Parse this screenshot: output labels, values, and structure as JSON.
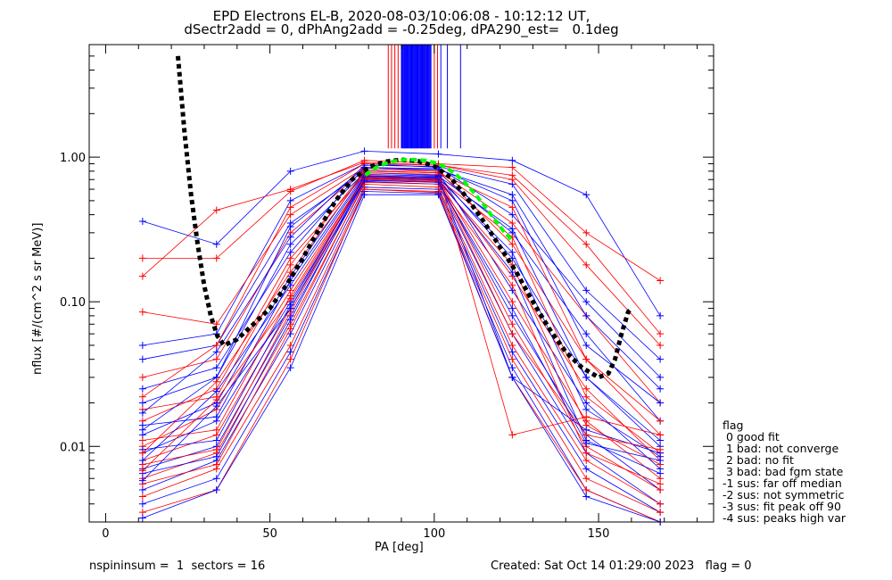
{
  "chart_data": {
    "type": "line",
    "title": "EPD Electrons EL-B, 2020-08-03/10:06:08 - 10:12:12 UT,",
    "subtitle": "dSectr2add = 0, dPhAng2add = -0.25deg, dPA290_est=   0.1deg",
    "xlabel": "PA [deg]",
    "ylabel": "nflux [#/(cm^2 s sr MeV)]",
    "xlim": [
      -5,
      185
    ],
    "ylim": [
      0.003,
      6.0
    ],
    "yscale": "log",
    "x_ticks": [
      0,
      50,
      100,
      150
    ],
    "x_tick_labels": [
      "0",
      "50",
      "100",
      "150"
    ],
    "y_ticks": [
      0.01,
      0.1,
      1.0
    ],
    "y_tick_labels": [
      "0.01",
      "0.10",
      "1.00"
    ],
    "pa_bins": [
      11.25,
      33.75,
      56.25,
      78.75,
      101.25,
      123.75,
      146.25,
      168.75
    ],
    "series": [
      {
        "color": "#0000ff",
        "values": [
          0.36,
          0.25,
          0.8,
          1.1,
          1.05,
          0.95,
          0.55,
          0.08
        ]
      },
      {
        "color": "#ff0000",
        "values": [
          0.2,
          0.2,
          0.58,
          0.95,
          0.9,
          0.85,
          0.3,
          0.14
        ]
      },
      {
        "color": "#ff0000",
        "values": [
          0.15,
          0.43,
          0.6,
          0.92,
          0.88,
          0.75,
          0.25,
          0.06
        ]
      },
      {
        "color": "#0000ff",
        "values": [
          0.05,
          0.06,
          0.5,
          0.9,
          0.85,
          0.4,
          0.1,
          0.03
        ]
      },
      {
        "color": "#ff0000",
        "values": [
          0.085,
          0.07,
          0.4,
          0.85,
          0.8,
          0.35,
          0.08,
          0.02
        ]
      },
      {
        "color": "#0000ff",
        "values": [
          0.04,
          0.05,
          0.35,
          0.8,
          0.78,
          0.3,
          0.06,
          0.015
        ]
      },
      {
        "color": "#ff0000",
        "values": [
          0.03,
          0.04,
          0.3,
          0.82,
          0.8,
          0.25,
          0.04,
          0.012
        ]
      },
      {
        "color": "#0000ff",
        "values": [
          0.02,
          0.03,
          0.25,
          0.78,
          0.75,
          0.2,
          0.03,
          0.01
        ]
      },
      {
        "color": "#ff0000",
        "values": [
          0.015,
          0.025,
          0.2,
          0.75,
          0.72,
          0.15,
          0.025,
          0.008
        ]
      },
      {
        "color": "#0000ff",
        "values": [
          0.012,
          0.02,
          0.15,
          0.8,
          0.78,
          0.12,
          0.02,
          0.007
        ]
      },
      {
        "color": "#ff0000",
        "values": [
          0.01,
          0.018,
          0.12,
          0.72,
          0.7,
          0.1,
          0.015,
          0.006
        ]
      },
      {
        "color": "#0000ff",
        "values": [
          0.009,
          0.015,
          0.1,
          0.7,
          0.68,
          0.08,
          0.012,
          0.005
        ]
      },
      {
        "color": "#ff0000",
        "values": [
          0.008,
          0.012,
          0.09,
          0.75,
          0.7,
          0.07,
          0.01,
          0.005
        ]
      },
      {
        "color": "#0000ff",
        "values": [
          0.007,
          0.01,
          0.08,
          0.68,
          0.65,
          0.06,
          0.009,
          0.004
        ]
      },
      {
        "color": "#ff0000",
        "values": [
          0.006,
          0.009,
          0.07,
          0.65,
          0.62,
          0.05,
          0.008,
          0.004
        ]
      },
      {
        "color": "#0000ff",
        "values": [
          0.005,
          0.008,
          0.06,
          0.62,
          0.6,
          0.045,
          0.007,
          0.0035
        ]
      },
      {
        "color": "#ff0000",
        "values": [
          0.0045,
          0.007,
          0.05,
          0.6,
          0.58,
          0.04,
          0.006,
          0.0035
        ]
      },
      {
        "color": "#0000ff",
        "values": [
          0.004,
          0.006,
          0.045,
          0.58,
          0.56,
          0.035,
          0.005,
          0.003
        ]
      },
      {
        "color": "#ff0000",
        "values": [
          0.0035,
          0.005,
          0.04,
          0.6,
          0.57,
          0.03,
          0.005,
          0.003
        ]
      },
      {
        "color": "#0000ff",
        "values": [
          0.0032,
          0.005,
          0.035,
          0.55,
          0.55,
          0.03,
          0.0045,
          0.003
        ]
      },
      {
        "color": "#0000ff",
        "values": [
          0.025,
          0.035,
          0.22,
          0.85,
          0.83,
          0.5,
          0.05,
          0.02
        ]
      },
      {
        "color": "#ff0000",
        "values": [
          0.018,
          0.022,
          0.18,
          0.8,
          0.78,
          0.45,
          0.04,
          0.015
        ]
      },
      {
        "color": "#0000ff",
        "values": [
          0.014,
          0.016,
          0.14,
          0.76,
          0.74,
          0.32,
          0.03,
          0.011
        ]
      },
      {
        "color": "#ff0000",
        "values": [
          0.011,
          0.013,
          0.11,
          0.73,
          0.71,
          0.28,
          0.022,
          0.009
        ]
      },
      {
        "color": "#0000ff",
        "values": [
          0.0095,
          0.011,
          0.095,
          0.74,
          0.72,
          0.22,
          0.018,
          0.0085
        ]
      },
      {
        "color": "#ff0000",
        "values": [
          0.0075,
          0.0095,
          0.085,
          0.7,
          0.68,
          0.18,
          0.014,
          0.0075
        ]
      },
      {
        "color": "#0000ff",
        "values": [
          0.0065,
          0.0085,
          0.075,
          0.72,
          0.7,
          0.16,
          0.011,
          0.0065
        ]
      },
      {
        "color": "#ff0000",
        "values": [
          0.0055,
          0.0075,
          0.065,
          0.67,
          0.65,
          0.13,
          0.009,
          0.0055
        ]
      },
      {
        "color": "#0000ff",
        "values": [
          0.017,
          0.045,
          0.28,
          0.88,
          0.86,
          0.65,
          0.12,
          0.04
        ]
      },
      {
        "color": "#ff0000",
        "values": [
          0.022,
          0.05,
          0.45,
          0.9,
          0.88,
          0.7,
          0.18,
          0.05
        ]
      },
      {
        "color": "#0000ff",
        "values": [
          0.013,
          0.03,
          0.33,
          0.84,
          0.82,
          0.55,
          0.08,
          0.025
        ]
      },
      {
        "color": "#ff0000",
        "values": [
          0.009,
          0.028,
          0.16,
          0.78,
          0.76,
          0.012,
          0.016,
          0.012
        ]
      },
      {
        "color": "#0000ff",
        "values": [
          0.008,
          0.024,
          0.13,
          0.74,
          0.73,
          0.03,
          0.013,
          0.009
        ]
      },
      {
        "color": "#ff0000",
        "values": [
          0.0068,
          0.021,
          0.105,
          0.71,
          0.69,
          0.06,
          0.012,
          0.0095
        ]
      },
      {
        "color": "#0000ff",
        "values": [
          0.0058,
          0.019,
          0.09,
          0.69,
          0.67,
          0.09,
          0.0105,
          0.008
        ]
      }
    ],
    "spikes": {
      "red_x": [
        86,
        87,
        88,
        89,
        90,
        96,
        97,
        98,
        100,
        101
      ],
      "blue_x": [
        91,
        92,
        93,
        94,
        95,
        102,
        104,
        108
      ],
      "y_top": 6.0,
      "y_bottom": 1.15
    },
    "fit_curves": [
      {
        "color": "#000000",
        "style": "dotted-thick",
        "x": [
          22,
          24,
          26,
          28,
          30,
          32,
          34,
          36,
          40,
          45,
          50,
          55,
          60,
          65,
          70,
          75,
          80,
          85,
          90,
          95,
          100,
          105,
          110,
          115,
          120,
          125,
          130,
          135,
          140,
          145,
          150,
          153,
          155,
          157,
          159,
          160
        ],
        "y": [
          5.0,
          1.5,
          0.55,
          0.25,
          0.13,
          0.08,
          0.058,
          0.05,
          0.055,
          0.07,
          0.09,
          0.13,
          0.2,
          0.32,
          0.5,
          0.7,
          0.85,
          0.93,
          0.96,
          0.94,
          0.87,
          0.72,
          0.52,
          0.36,
          0.24,
          0.16,
          0.1,
          0.065,
          0.045,
          0.035,
          0.03,
          0.032,
          0.04,
          0.06,
          0.085,
          0.09
        ]
      },
      {
        "color": "#00ff00",
        "style": "dashed-thick",
        "x": [
          79,
          82,
          85,
          88,
          91,
          94,
          97,
          100,
          103,
          106,
          109,
          112,
          115,
          118,
          121,
          124
        ],
        "y": [
          0.75,
          0.84,
          0.9,
          0.94,
          0.96,
          0.96,
          0.95,
          0.92,
          0.86,
          0.78,
          0.68,
          0.57,
          0.47,
          0.38,
          0.31,
          0.26
        ]
      }
    ]
  },
  "header": {
    "title": "EPD Electrons EL-B, 2020-08-03/10:06:08 - 10:12:12 UT,",
    "subtitle": "dSectr2add = 0, dPhAng2add = -0.25deg, dPA290_est=   0.1deg"
  },
  "axes": {
    "xlabel": "PA [deg]",
    "ylabel": "nflux [#/(cm^2 s sr MeV)]"
  },
  "legend": {
    "title": "flag",
    "items": [
      " 0 good fit",
      " 1 bad: not converge",
      " 2 bad: no fit",
      " 3 bad: bad fgm state",
      "-1 sus: far off median",
      "-2 sus: not symmetric",
      "-3 sus: fit peak off 90",
      "-4 sus: peaks high var"
    ]
  },
  "footer": {
    "left": "nspininsum =  1  sectors = 16",
    "right": "Created: Sat Oct 14 01:29:00 2023   flag = 0"
  }
}
